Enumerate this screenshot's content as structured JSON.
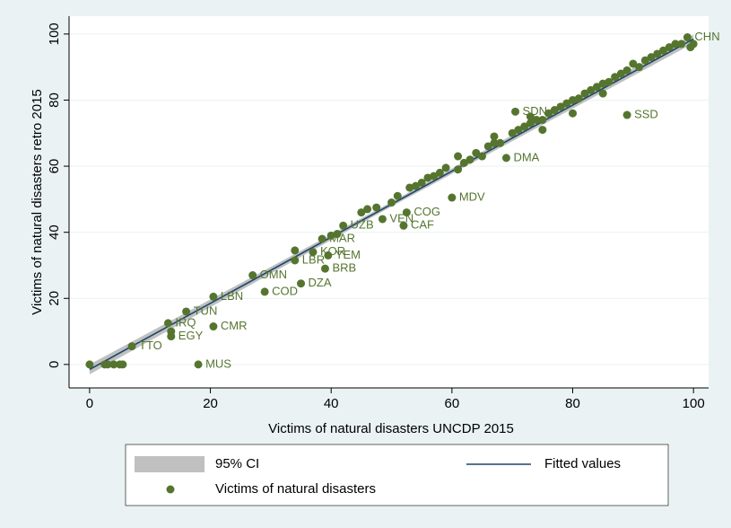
{
  "chart_data": {
    "type": "scatter",
    "xlabel": "Victims of natural disasters UNCDP 2015",
    "ylabel": "Victims of natural disasters retro 2015",
    "xlim": [
      -3.4,
      102.5
    ],
    "ylim": [
      -7.1,
      105.4
    ],
    "xticks": [
      0,
      20,
      40,
      60,
      80,
      100
    ],
    "yticks": [
      0,
      20,
      40,
      60,
      80,
      100
    ],
    "grid": true,
    "legend": "bottom",
    "series": [
      {
        "name": "95% CI",
        "type": "band",
        "color": "#c0c0c0",
        "x": [
          0,
          50,
          100
        ],
        "lower": [
          -3,
          47.8,
          97.2
        ],
        "upper": [
          0,
          49.2,
          99.8
        ]
      },
      {
        "name": "Fitted values",
        "type": "line",
        "color": "#1a476f",
        "x": [
          0,
          100
        ],
        "values": [
          -1.5,
          98.5
        ]
      },
      {
        "name": "Victims of natural disasters",
        "type": "scatter",
        "color": "#55752f",
        "x": [
          99,
          89,
          70.5,
          69,
          60,
          52,
          52.5,
          48.5,
          42,
          38.5,
          37,
          39.5,
          34,
          39,
          35,
          27,
          29,
          20.5,
          16,
          13,
          20.5,
          13.5,
          7,
          18,
          0,
          2.5,
          3,
          4,
          5,
          5.5,
          13.5,
          34,
          40,
          41,
          45,
          46,
          47.5,
          50,
          51,
          53,
          54,
          55,
          56,
          57,
          58,
          59,
          61,
          62,
          63,
          64,
          65,
          66,
          67,
          68,
          70,
          71,
          72,
          73,
          74,
          75,
          76,
          77,
          78,
          79,
          80,
          81,
          82,
          83,
          84,
          85,
          86,
          87,
          88,
          89,
          90,
          91,
          92,
          93,
          94,
          95,
          96,
          97,
          98,
          99.5,
          100,
          61,
          67,
          73,
          75,
          80,
          85
        ],
        "values": [
          99,
          75.5,
          76.5,
          62.5,
          50.5,
          42,
          46,
          44,
          42,
          38,
          34,
          33,
          31.5,
          29,
          24.5,
          27,
          22,
          20.5,
          16,
          12.5,
          11.5,
          8.5,
          5.5,
          0,
          0,
          0,
          0,
          0,
          0,
          0,
          10,
          34.5,
          39,
          39.5,
          46,
          47,
          47.5,
          49,
          51,
          53.5,
          54,
          55,
          56.5,
          57,
          58,
          59.5,
          59,
          61,
          62,
          64,
          63,
          66,
          67,
          67,
          70,
          71,
          72,
          73,
          74,
          74,
          76,
          77,
          78,
          79,
          80,
          80.5,
          82,
          83,
          84,
          85,
          85.5,
          87,
          88,
          89,
          91,
          90,
          92,
          93,
          94,
          95,
          96,
          97,
          97,
          96,
          97,
          63,
          69,
          75,
          71,
          76,
          82
        ],
        "labels": [
          "CHN",
          "SSD",
          "SDN",
          "DMA",
          "MDV",
          "CAF",
          "COG",
          "VEN",
          "UZB",
          "MAR",
          "KOR",
          "YEM",
          "LBR",
          "BRB",
          "DZA",
          "OMN",
          "COD",
          "LBN",
          "TUN",
          "IRQ",
          "CMR",
          "EGY",
          "TTO",
          "MUS",
          null,
          null,
          null,
          null,
          null,
          null,
          null,
          null,
          null,
          null,
          null,
          null,
          null,
          null,
          null,
          null,
          null,
          null,
          null,
          null,
          null,
          null,
          null,
          null,
          null,
          null,
          null,
          null,
          null,
          null,
          null,
          null,
          null,
          null,
          null,
          null,
          null,
          null,
          null,
          null,
          null,
          null,
          null,
          null,
          null,
          null,
          null,
          null,
          null,
          null,
          null,
          null,
          null,
          null,
          null,
          null,
          null,
          null,
          null,
          null,
          null,
          null,
          null,
          null,
          null,
          null,
          null,
          null
        ]
      }
    ]
  }
}
